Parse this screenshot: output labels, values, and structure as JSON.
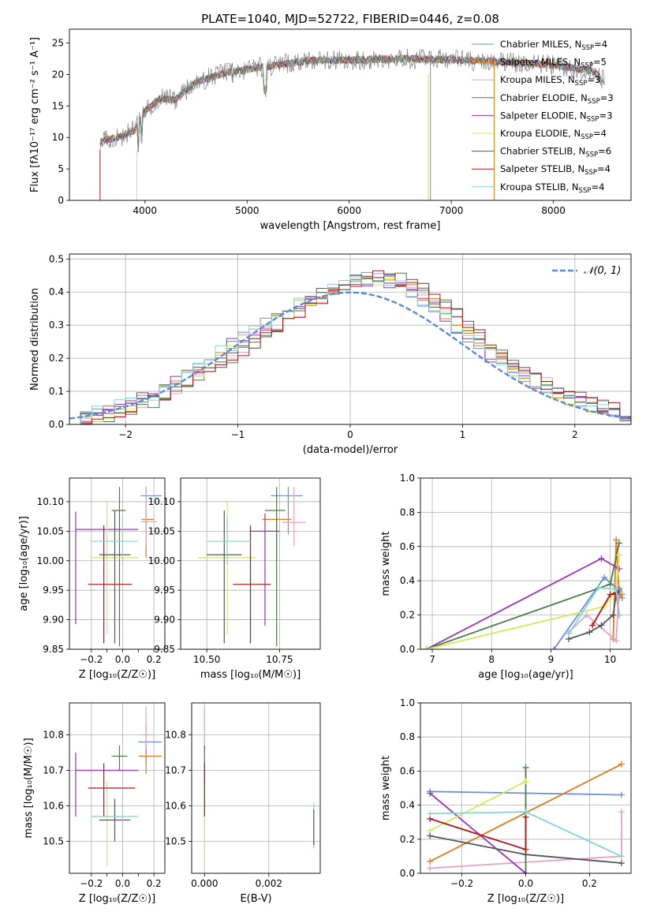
{
  "colors": {
    "Chabrier MILES": "#6a8fd8",
    "Salpeter MILES": "#e07b1f",
    "Kroupa MILES": "#e5a0c8",
    "Chabrier ELODIE": "#4a7a4a",
    "Salpeter ELODIE": "#9b30b8",
    "Kroupa ELODIE": "#d4e85a",
    "Chabrier STELIB": "#555555",
    "Salpeter STELIB": "#b01515",
    "Kroupa STELIB": "#82d4d6"
  },
  "header": {
    "title": "PLATE=1040, MJD=52722, FIBERID=0446, z=0.08"
  },
  "chart_data": [
    {
      "id": "spectrum",
      "type": "line",
      "title": "PLATE=1040, MJD=52722, FIBERID=0446, z=0.08",
      "xlabel": "wavelength [Angstrom, rest frame]",
      "ylabel": "Flux [fλ10⁻¹⁷ erg cm⁻² s⁻¹ A⁻¹]",
      "xlim": [
        3260,
        8760
      ],
      "ylim": [
        0,
        27.2
      ],
      "xticks": [
        "4000",
        "5000",
        "6000",
        "7000",
        "8000"
      ],
      "yticks": [
        "0",
        "5",
        "10",
        "15",
        "20",
        "25"
      ],
      "legend_position": "upper-right",
      "continuum_anchors": [
        [
          3560,
          9.5
        ],
        [
          3750,
          10.0
        ],
        [
          3900,
          11.2
        ],
        [
          4000,
          14.2
        ],
        [
          4150,
          16.2
        ],
        [
          4300,
          16.0
        ],
        [
          4500,
          18.8
        ],
        [
          4800,
          20.3
        ],
        [
          5200,
          21.3
        ],
        [
          5600,
          22.2
        ],
        [
          6000,
          22.3
        ],
        [
          6500,
          22.5
        ],
        [
          7000,
          22.4
        ],
        [
          7500,
          22.0
        ],
        [
          8000,
          21.5
        ],
        [
          8400,
          20.5
        ],
        [
          8500,
          19.0
        ]
      ],
      "noise_amplitude": 1.1,
      "legend": [
        {
          "label": "Chabrier MILES, N",
          "sub": "SSP",
          "count": "=4"
        },
        {
          "label": "Salpeter MILES, N",
          "sub": "SSP",
          "count": "=5"
        },
        {
          "label": "Kroupa MILES, N",
          "sub": "SSP",
          "count": "=3"
        },
        {
          "label": "Chabrier ELODIE, N",
          "sub": "SSP",
          "count": "=3"
        },
        {
          "label": "Salpeter ELODIE, N",
          "sub": "SSP",
          "count": "=3"
        },
        {
          "label": "Kroupa ELODIE, N",
          "sub": "SSP",
          "count": "=4"
        },
        {
          "label": "Chabrier STELIB, N",
          "sub": "SSP",
          "count": "=6"
        },
        {
          "label": "Salpeter STELIB, N",
          "sub": "SSP",
          "count": "=4"
        },
        {
          "label": "Kroupa STELIB, N",
          "sub": "SSP",
          "count": "=4"
        }
      ]
    },
    {
      "id": "residuals",
      "type": "histogram",
      "xlabel": "(data-model)/error",
      "ylabel": "Normed distribution",
      "xlim": [
        -2.5,
        2.5
      ],
      "ylim": [
        0,
        0.515
      ],
      "xticks": [
        "−2",
        "−1",
        "0",
        "1",
        "2"
      ],
      "yticks": [
        "0.0",
        "0.1",
        "0.2",
        "0.3",
        "0.4",
        "0.5"
      ],
      "bin_width": 0.1,
      "reference_curve": {
        "label": "𝒩(0, 1)",
        "mean": 0,
        "sigma": 1,
        "color": "#5b8ad6"
      },
      "legend_position": "upper-right"
    },
    {
      "id": "age-vs-Z",
      "type": "errorbar",
      "xlabel": "Z [log₁₀(Z/Z☉)]",
      "ylabel": "age  [log₁₀(age/yr)]",
      "xlim": [
        -0.34,
        0.27
      ],
      "ylim": [
        9.85,
        10.14
      ],
      "xticks": [
        "−0.2",
        "0.0",
        "0.2"
      ],
      "xtick_values": [
        -0.25,
        -0.15,
        -0.05,
        0.05,
        0.15,
        0.25
      ],
      "yticks": [
        "9.85",
        "9.90",
        "9.95",
        "10.00",
        "10.05",
        "10.10"
      ],
      "points": [
        {
          "model": "Chabrier MILES",
          "x": 0.15,
          "y": 10.11,
          "xerr": [
            0.035,
            0.1
          ],
          "yerr": [
            0.065,
            0.015
          ]
        },
        {
          "model": "Salpeter MILES",
          "x": 0.15,
          "y": 10.07,
          "xerr": [
            0.03,
            0.05
          ],
          "yerr": [
            0.065,
            0.01
          ]
        },
        {
          "model": "Kroupa MILES",
          "x": 0.15,
          "y": 10.066,
          "xerr": [
            0.03,
            0.07
          ],
          "yerr": [
            0.04,
            0.06
          ]
        },
        {
          "model": "Chabrier ELODIE",
          "x": -0.02,
          "y": 10.085,
          "xerr": [
            0.05,
            0.04
          ],
          "yerr": [
            0.23,
            0.04
          ]
        },
        {
          "model": "Salpeter ELODIE",
          "x": -0.3,
          "y": 10.053,
          "xerr": [
            0.0,
            0.4
          ],
          "yerr": [
            0.16,
            0.03
          ]
        },
        {
          "model": "Kroupa ELODIE",
          "x": -0.1,
          "y": 10.005,
          "xerr": [
            0.1,
            0.2
          ],
          "yerr": [
            0.13,
            0.095
          ]
        },
        {
          "model": "Chabrier STELIB",
          "x": -0.05,
          "y": 10.01,
          "xerr": [
            0.1,
            0.1
          ],
          "yerr": [
            0.15,
            0.075
          ]
        },
        {
          "model": "Salpeter STELIB",
          "x": -0.12,
          "y": 9.96,
          "xerr": [
            0.1,
            0.18
          ],
          "yerr": [
            0.1,
            0.1
          ]
        },
        {
          "model": "Kroupa STELIB",
          "x": 0.0,
          "y": 10.033,
          "xerr": [
            0.2,
            0.1
          ],
          "yerr": [
            0.04,
            0.04
          ]
        }
      ]
    },
    {
      "id": "age-vs-mass",
      "type": "errorbar",
      "xlabel": "mass [log₁₀(M/M☉)]",
      "ylabel": "",
      "xlim": [
        10.41,
        10.89
      ],
      "ylim": [
        9.85,
        10.14
      ],
      "xticks": [
        "10.50",
        "10.75"
      ],
      "yticks": [
        "9.85",
        "9.90",
        "9.95",
        "10.00",
        "10.05",
        "10.10"
      ],
      "points": [
        {
          "model": "Chabrier MILES",
          "x": 10.78,
          "y": 10.11,
          "xerr": [
            0.06,
            0.05
          ],
          "yerr": [
            0.065,
            0.015
          ]
        },
        {
          "model": "Salpeter MILES",
          "x": 10.74,
          "y": 10.07,
          "xerr": [
            0.05,
            0.05
          ],
          "yerr": [
            0.07,
            0.01
          ]
        },
        {
          "model": "Kroupa MILES",
          "x": 10.8,
          "y": 10.065,
          "xerr": [
            0.04,
            0.04
          ],
          "yerr": [
            0.04,
            0.06
          ]
        },
        {
          "model": "Chabrier ELODIE",
          "x": 10.74,
          "y": 10.085,
          "xerr": [
            0.04,
            0.03
          ],
          "yerr": [
            0.23,
            0.04
          ]
        },
        {
          "model": "Salpeter ELODIE",
          "x": 10.7,
          "y": 10.05,
          "xerr": [
            0.05,
            0.05
          ],
          "yerr": [
            0.16,
            0.03
          ]
        },
        {
          "model": "Kroupa ELODIE",
          "x": 10.57,
          "y": 10.005,
          "xerr": [
            0.1,
            0.1
          ],
          "yerr": [
            0.13,
            0.095
          ]
        },
        {
          "model": "Chabrier STELIB",
          "x": 10.56,
          "y": 10.01,
          "xerr": [
            0.06,
            0.06
          ],
          "yerr": [
            0.15,
            0.075
          ]
        },
        {
          "model": "Salpeter STELIB",
          "x": 10.65,
          "y": 9.96,
          "xerr": [
            0.06,
            0.07
          ],
          "yerr": [
            0.1,
            0.1
          ]
        },
        {
          "model": "Kroupa STELIB",
          "x": 10.57,
          "y": 10.033,
          "xerr": [
            0.07,
            0.08
          ],
          "yerr": [
            0.04,
            0.04
          ]
        }
      ]
    },
    {
      "id": "weight-vs-age",
      "type": "line",
      "xlabel": "age  [log₁₀(age/yr)]",
      "ylabel": "mass weight",
      "xlim": [
        6.8,
        10.35
      ],
      "ylim": [
        0,
        1
      ],
      "xticks": [
        "7",
        "8",
        "9",
        "10"
      ],
      "yticks": [
        "0.0",
        "0.2",
        "0.4",
        "0.6",
        "0.8",
        "1.0"
      ],
      "series": [
        {
          "model": "Chabrier MILES",
          "x": [
            9.05,
            9.9,
            10.15,
            10.2
          ],
          "y": [
            0.0,
            0.42,
            0.34,
            0.3
          ]
        },
        {
          "model": "Salpeter MILES",
          "x": [
            10.05,
            10.1,
            10.15,
            10.2
          ],
          "y": [
            0.06,
            0.64,
            0.3,
            0.32
          ]
        },
        {
          "model": "Kroupa MILES",
          "x": [
            9.3,
            9.6,
            10.1,
            10.15
          ],
          "y": [
            0.1,
            0.2,
            0.05,
            0.36
          ]
        },
        {
          "model": "Chabrier ELODIE",
          "x": [
            6.9,
            10.0,
            10.15
          ],
          "y": [
            0.0,
            0.38,
            0.62
          ]
        },
        {
          "model": "Salpeter ELODIE",
          "x": [
            6.9,
            9.85,
            10.15
          ],
          "y": [
            0.0,
            0.53,
            0.47
          ]
        },
        {
          "model": "Kroupa ELODIE",
          "x": [
            6.9,
            9.9,
            10.1,
            10.15
          ],
          "y": [
            0.0,
            0.25,
            0.35,
            0.55
          ]
        },
        {
          "model": "Chabrier STELIB",
          "x": [
            9.3,
            9.65,
            9.85,
            10.05,
            10.1,
            10.15
          ],
          "y": [
            0.06,
            0.1,
            0.14,
            0.2,
            0.32,
            0.35
          ]
        },
        {
          "model": "Salpeter STELIB",
          "x": [
            9.7,
            10.0,
            10.1,
            10.15
          ],
          "y": [
            0.14,
            0.32,
            0.33,
            0.2
          ]
        },
        {
          "model": "Kroupa STELIB",
          "x": [
            9.3,
            9.8,
            10.1,
            10.15
          ],
          "y": [
            0.09,
            0.36,
            0.35,
            0.2
          ]
        }
      ]
    },
    {
      "id": "mass-vs-Z",
      "type": "errorbar",
      "xlabel": "Z [log₁₀(Z/Z☉)]",
      "ylabel": "mass [log₁₀(M/M☉)]",
      "xlim": [
        -0.34,
        0.27
      ],
      "ylim": [
        10.41,
        10.89
      ],
      "xticks": [
        "−0.2",
        "0.0",
        "0.2"
      ],
      "xtick_values": [
        -0.25,
        -0.15,
        -0.05,
        0.05,
        0.15,
        0.25
      ],
      "yticks": [
        "10.5",
        "10.6",
        "10.7",
        "10.8"
      ],
      "points": [
        {
          "model": "Chabrier MILES",
          "x": 0.15,
          "y": 10.78,
          "xerr": [
            0.05,
            0.1
          ],
          "yerr": [
            0.06,
            0.05
          ]
        },
        {
          "model": "Salpeter MILES",
          "x": 0.15,
          "y": 10.74,
          "xerr": [
            0.05,
            0.1
          ],
          "yerr": [
            0.05,
            0.05
          ]
        },
        {
          "model": "Kroupa MILES",
          "x": 0.15,
          "y": 10.8,
          "xerr": [
            0.03,
            0.05
          ],
          "yerr": [
            0.04,
            0.08
          ]
        },
        {
          "model": "Chabrier ELODIE",
          "x": -0.02,
          "y": 10.74,
          "xerr": [
            0.05,
            0.05
          ],
          "yerr": [
            0.04,
            0.03
          ]
        },
        {
          "model": "Salpeter ELODIE",
          "x": -0.3,
          "y": 10.7,
          "xerr": [
            0.0,
            0.4
          ],
          "yerr": [
            0.13,
            0.05
          ]
        },
        {
          "model": "Kroupa ELODIE",
          "x": -0.1,
          "y": 10.57,
          "xerr": [
            0.1,
            0.1
          ],
          "yerr": [
            0.14,
            0.1
          ]
        },
        {
          "model": "Chabrier STELIB",
          "x": -0.05,
          "y": 10.56,
          "xerr": [
            0.1,
            0.1
          ],
          "yerr": [
            0.06,
            0.06
          ]
        },
        {
          "model": "Salpeter STELIB",
          "x": -0.12,
          "y": 10.65,
          "xerr": [
            0.1,
            0.2
          ],
          "yerr": [
            0.08,
            0.07
          ]
        },
        {
          "model": "Kroupa STELIB",
          "x": 0.0,
          "y": 10.57,
          "xerr": [
            0.2,
            0.1
          ],
          "yerr": [
            0.06,
            0.06
          ]
        }
      ]
    },
    {
      "id": "mass-vs-EBV",
      "type": "errorbar",
      "xlabel": "E(B-V)",
      "ylabel": "",
      "xlim": [
        -0.0004,
        0.0036
      ],
      "ylim": [
        10.41,
        10.89
      ],
      "xticks": [
        "0.000",
        "0.002"
      ],
      "yticks": [
        "10.5",
        "10.6",
        "10.7",
        "10.8"
      ],
      "points": [
        {
          "model": "Kroupa MILES",
          "x": 0.0,
          "y": 10.8,
          "xerr": [
            0,
            0
          ],
          "yerr": [
            0.04,
            0.08
          ]
        },
        {
          "model": "Chabrier ELODIE",
          "x": 0.0,
          "y": 10.7,
          "xerr": [
            0,
            0
          ],
          "yerr": [
            0.04,
            0.07
          ]
        },
        {
          "model": "Kroupa ELODIE",
          "x": 0.0,
          "y": 10.57,
          "xerr": [
            0,
            0
          ],
          "yerr": [
            0.14,
            0.1
          ]
        },
        {
          "model": "Salpeter STELIB",
          "x": 0.0,
          "y": 10.65,
          "xerr": [
            0,
            0
          ],
          "yerr": [
            0.08,
            0.07
          ]
        },
        {
          "model": "Kroupa STELIB",
          "x": 0.0034,
          "y": 10.54,
          "xerr": [
            0,
            0
          ],
          "yerr": [
            0.06,
            0.07
          ]
        },
        {
          "model": "Chabrier STELIB",
          "x": 0.0034,
          "y": 10.54,
          "xerr": [
            0,
            0
          ],
          "yerr": [
            0.05,
            0.05
          ]
        }
      ]
    },
    {
      "id": "weight-vs-Z",
      "type": "line",
      "xlabel": "Z [log₁₀(Z/Z☉)]",
      "ylabel": "mass weight",
      "xlim": [
        -0.33,
        0.33
      ],
      "ylim": [
        0,
        1
      ],
      "xticks": [
        "−0.2",
        "0.0",
        "0.2"
      ],
      "yticks": [
        "0.0",
        "0.2",
        "0.4",
        "0.6",
        "0.8",
        "1.0"
      ],
      "series": [
        {
          "model": "Chabrier MILES",
          "x": [
            -0.3,
            0.3
          ],
          "y": [
            0.48,
            0.46
          ]
        },
        {
          "model": "Salpeter MILES",
          "x": [
            -0.3,
            0.3
          ],
          "y": [
            0.07,
            0.64
          ]
        },
        {
          "model": "Kroupa MILES",
          "x": [
            -0.3,
            0.3,
            0.3
          ],
          "y": [
            0.03,
            0.1,
            0.36
          ]
        },
        {
          "model": "Chabrier ELODIE",
          "x": [
            0.0,
            0.0
          ],
          "y": [
            0.0,
            0.62
          ]
        },
        {
          "model": "Salpeter ELODIE",
          "x": [
            -0.3,
            0.0
          ],
          "y": [
            0.47,
            0.0
          ]
        },
        {
          "model": "Kroupa ELODIE",
          "x": [
            -0.3,
            0.0
          ],
          "y": [
            0.25,
            0.54
          ]
        },
        {
          "model": "Chabrier STELIB",
          "x": [
            -0.3,
            0.0,
            0.3
          ],
          "y": [
            0.22,
            0.11,
            0.06
          ]
        },
        {
          "model": "Salpeter STELIB",
          "x": [
            -0.3,
            0.0,
            0.0
          ],
          "y": [
            0.32,
            0.14,
            0.33
          ]
        },
        {
          "model": "Kroupa STELIB",
          "x": [
            -0.3,
            0.0,
            0.3
          ],
          "y": [
            0.35,
            0.36,
            0.1
          ]
        }
      ]
    }
  ]
}
